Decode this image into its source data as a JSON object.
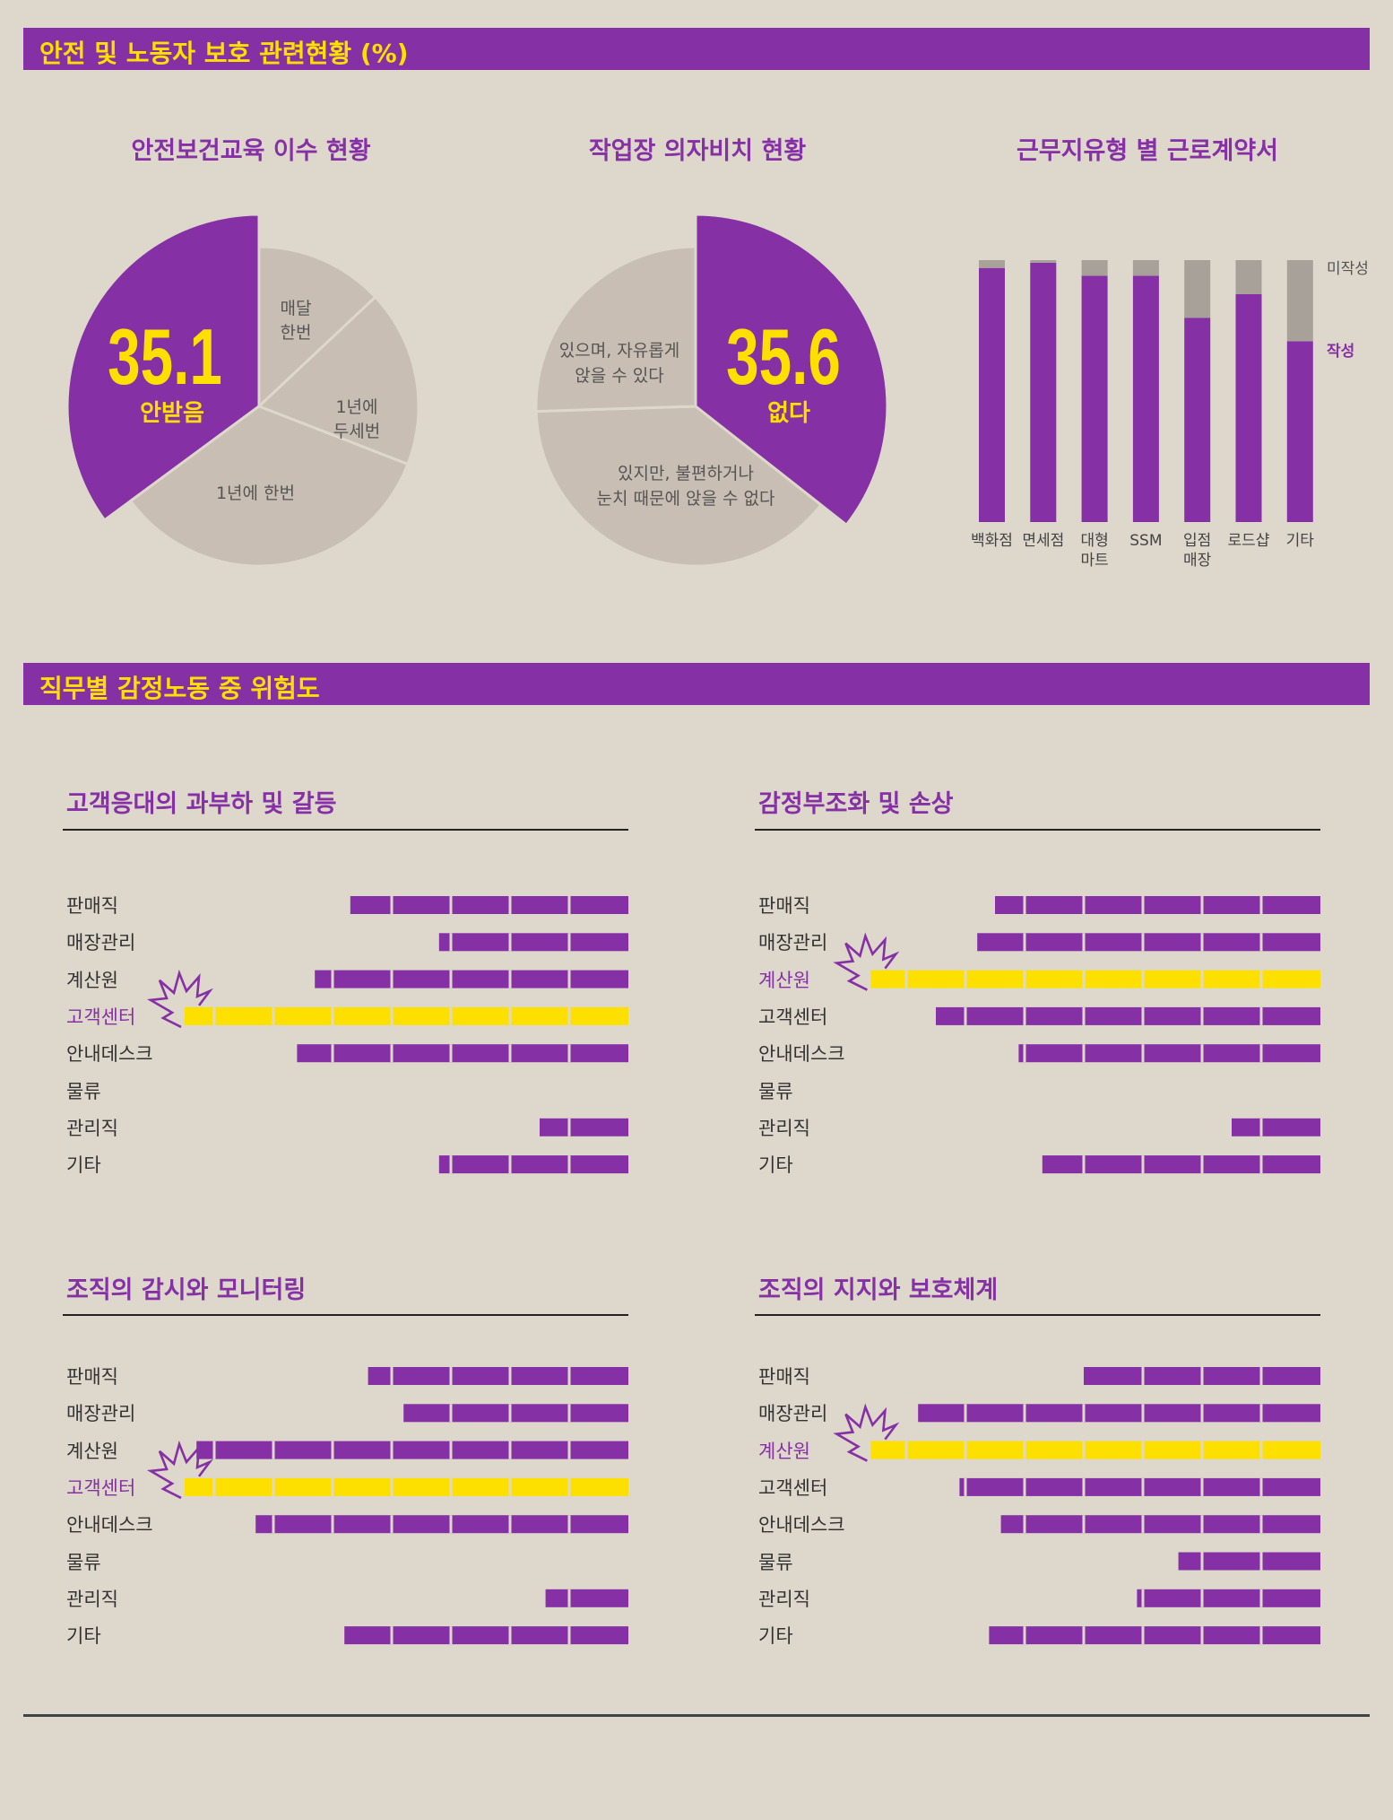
{
  "section1": {
    "title": "안전 및 노동자 보호 관련현황 (%)"
  },
  "section2": {
    "title": "직무별 감정노동 중 위험도"
  },
  "colors": {
    "purple": "#8531a5",
    "yellow": "#fde000",
    "grey": "#c8beb3",
    "bg": "#ded7cb",
    "barGrey": "#a7a19a"
  },
  "chart_data": [
    {
      "type": "pie",
      "title": "안전보건교육 이수 현황",
      "big_value": "35.1",
      "big_label": "안받음",
      "slices": [
        {
          "label": "안받음",
          "value": 35.1,
          "highlight": true
        },
        {
          "label": "매달 한번",
          "value": 13.0
        },
        {
          "label": "1년에 두세번",
          "value": 17.9
        },
        {
          "label": "1년에 한번",
          "value": 34.0
        }
      ],
      "slice_labels": [
        {
          "lines": [
            "매달",
            "한번"
          ]
        },
        {
          "lines": [
            "1년에",
            "두세번"
          ]
        },
        {
          "lines": [
            "1년에 한번"
          ]
        }
      ]
    },
    {
      "type": "pie",
      "title": "작업장 의자비치 현황",
      "big_value": "35.6",
      "big_label": "없다",
      "slices": [
        {
          "label": "없다",
          "value": 35.6,
          "highlight": true
        },
        {
          "label": "있지만, 불편하거나 눈치 때문에 앉을 수 없다",
          "value": 38.9
        },
        {
          "label": "있으며, 자유롭게 앉을 수 있다",
          "value": 25.5
        }
      ],
      "slice_labels": [
        {
          "lines": [
            "있지만, 불편하거나",
            "눈치 때문에 앉을 수 없다"
          ]
        },
        {
          "lines": [
            "있으며, 자유롭게",
            "앉을 수 있다"
          ]
        }
      ]
    },
    {
      "type": "bar",
      "stacked": true,
      "title": "근무지유형 별 근로계약서",
      "categories": [
        "백화점",
        "면세점",
        "대형\n마트",
        "SSM",
        "입점\n매장",
        "로드샵",
        "기타"
      ],
      "series": [
        {
          "name": "작성",
          "values": [
            97,
            99,
            94,
            94,
            78,
            87,
            69
          ]
        },
        {
          "name": "미작성",
          "values": [
            3,
            1,
            6,
            6,
            22,
            13,
            31
          ]
        }
      ],
      "ylim": [
        0,
        100
      ]
    },
    {
      "type": "bar",
      "orientation": "horizontal",
      "title": "고객응대의 과부하 및 갈등",
      "categories": [
        "판매직",
        "매장관리",
        "계산원",
        "고객센터",
        "안내데스크",
        "물류",
        "관리직",
        "기타"
      ],
      "values": [
        4.7,
        3.2,
        5.3,
        7.5,
        5.6,
        0,
        1.5,
        3.2
      ],
      "highlight": "고객센터"
    },
    {
      "type": "bar",
      "orientation": "horizontal",
      "title": "감정부조화 및 손상",
      "categories": [
        "판매직",
        "매장관리",
        "계산원",
        "고객센터",
        "안내데스크",
        "물류",
        "관리직",
        "기타"
      ],
      "values": [
        5.5,
        5.8,
        7.6,
        6.5,
        5.1,
        0,
        1.5,
        4.7
      ],
      "highlight": "계산원"
    },
    {
      "type": "bar",
      "orientation": "horizontal",
      "title": "조직의 감시와 모니터링",
      "categories": [
        "판매직",
        "매장관리",
        "계산원",
        "고객센터",
        "안내데스크",
        "물류",
        "관리직",
        "기타"
      ],
      "values": [
        4.4,
        3.8,
        7.3,
        7.5,
        6.3,
        0,
        1.4,
        4.8
      ],
      "highlight": "고객센터"
    },
    {
      "type": "bar",
      "orientation": "horizontal",
      "title": "조직의 지지와 보호체계",
      "categories": [
        "판매직",
        "매장관리",
        "계산원",
        "고객센터",
        "안내데스크",
        "물류",
        "관리직",
        "기타"
      ],
      "values": [
        4.0,
        6.8,
        7.6,
        6.1,
        5.4,
        2.4,
        3.1,
        5.6
      ],
      "highlight": "계산원"
    }
  ]
}
